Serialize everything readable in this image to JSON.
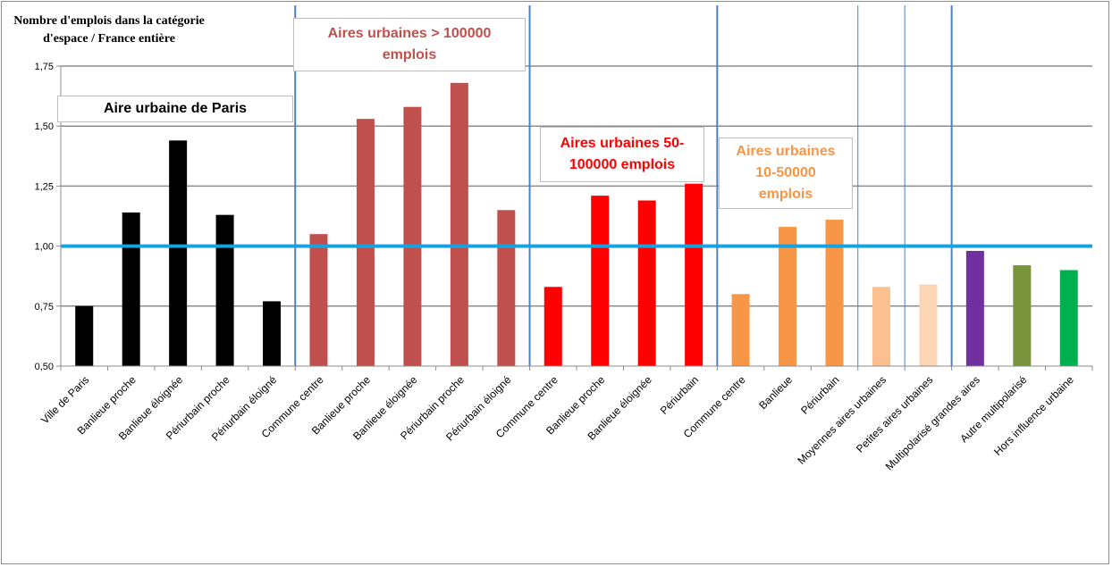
{
  "chart_data": {
    "type": "bar",
    "ylabel": "Nombre d'emplois dans la catégorie d'espace / France entière",
    "ylim": [
      0.5,
      1.75
    ],
    "yticks": [
      "0,50",
      "0,75",
      "1,00",
      "1,25",
      "1,50",
      "1,75"
    ],
    "yticks_values": [
      0.5,
      0.75,
      1.0,
      1.25,
      1.5,
      1.75
    ],
    "grid": true,
    "reference_line": {
      "value": 1.0,
      "color": "#19a2e0"
    },
    "categories": [
      "Ville de Paris",
      "Banlieue proche",
      "Banlieue éloignée",
      "Périurbain proche",
      "Périurbain éloigné",
      "Commune centre",
      "Banlieue proche",
      "Banlieue éloignée",
      "Périurbain proche",
      "Périurbain éloigné",
      "Commune centre",
      "Banlieue proche",
      "Banlieue éloignée",
      "Périurbain",
      "Commune centre",
      "Banlieue",
      "Périurbain",
      "Moyennes aires urbaines",
      "Petites aires urbaines",
      "Multipolarisé grandes aires",
      "Autre multipolarisé",
      "Hors influence urbaine"
    ],
    "values": [
      0.75,
      1.14,
      1.44,
      1.13,
      0.77,
      1.05,
      1.53,
      1.58,
      1.68,
      1.15,
      0.83,
      1.21,
      1.19,
      1.26,
      0.8,
      1.08,
      1.11,
      0.83,
      0.84,
      0.98,
      0.92,
      0.9
    ],
    "bar_colors": [
      "#000000",
      "#000000",
      "#000000",
      "#000000",
      "#000000",
      "#c0504d",
      "#c0504d",
      "#c0504d",
      "#c0504d",
      "#c0504d",
      "#ff0000",
      "#ff0000",
      "#ff0000",
      "#ff0000",
      "#f79646",
      "#f79646",
      "#f79646",
      "#fac090",
      "#fcd5b4",
      "#7030a0",
      "#77933c",
      "#00b050"
    ],
    "groups": [
      {
        "label": "Aire urbaine de Paris",
        "color": "#000000"
      },
      {
        "label": "Aires urbaines > 100000 emplois",
        "color": "#c0504d"
      },
      {
        "label": "Aires urbaines 50-100000 emplois",
        "color": "#ff0000"
      },
      {
        "label": "Aires urbaines 10-50000 emplois",
        "color": "#f79646"
      }
    ],
    "separator_color": "#4f81bd"
  }
}
